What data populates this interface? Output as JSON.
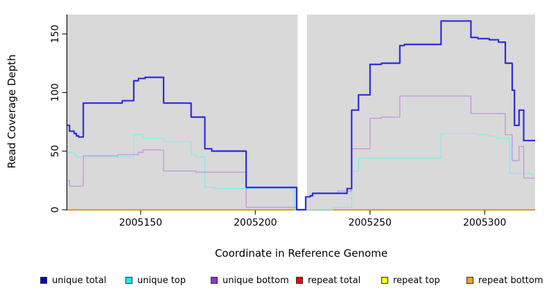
{
  "chart_data": {
    "type": "line",
    "subtype": "step-after",
    "title": "",
    "xlabel": "Coordinate in Reference Genome",
    "ylabel": "Read Coverage Depth",
    "xlim": [
      2005118,
      2005322
    ],
    "ylim": [
      0,
      166
    ],
    "x_ticks": [
      2005150,
      2005200,
      2005250,
      2005300
    ],
    "y_ticks": [
      0,
      50,
      100,
      150
    ],
    "grid": false,
    "plot_bg": "#D9D9D9",
    "page_bg": "#FFFFFF",
    "gap_band": {
      "from": 2005218.5,
      "to": 2005222.5,
      "color": "#FFFFFF"
    },
    "legend_position": "bottom",
    "draw_order": [
      "repeat total",
      "repeat top",
      "repeat bottom",
      "unique top",
      "unique bottom",
      "unique total"
    ],
    "series": [
      {
        "name": "unique total",
        "legend_color": "#0000CD",
        "line_color": "#2020CD",
        "halo_color": "#9C9FEF",
        "points": [
          [
            2005118,
            72
          ],
          [
            2005119,
            67
          ],
          [
            2005121,
            65
          ],
          [
            2005122,
            63
          ],
          [
            2005123,
            62
          ],
          [
            2005125,
            91
          ],
          [
            2005142,
            93
          ],
          [
            2005147,
            110
          ],
          [
            2005149,
            112
          ],
          [
            2005152,
            113
          ],
          [
            2005160,
            91
          ],
          [
            2005172,
            79
          ],
          [
            2005178,
            52
          ],
          [
            2005181,
            50
          ],
          [
            2005196,
            19
          ],
          [
            2005218,
            0
          ],
          [
            2005222,
            11
          ],
          [
            2005224,
            12
          ],
          [
            2005225,
            14
          ],
          [
            2005240,
            18
          ],
          [
            2005242,
            85
          ],
          [
            2005245,
            98
          ],
          [
            2005250,
            124
          ],
          [
            2005255,
            125
          ],
          [
            2005263,
            140
          ],
          [
            2005265,
            141
          ],
          [
            2005281,
            161
          ],
          [
            2005294,
            147
          ],
          [
            2005297,
            146
          ],
          [
            2005302,
            145
          ],
          [
            2005306,
            143
          ],
          [
            2005309,
            125
          ],
          [
            2005312,
            102
          ],
          [
            2005313,
            72
          ],
          [
            2005315,
            85
          ],
          [
            2005317,
            59
          ],
          [
            2005322,
            59
          ]
        ]
      },
      {
        "name": "unique top",
        "legend_color": "#00FFFF",
        "line_color": "#85EAEA",
        "points": [
          [
            2005118,
            49
          ],
          [
            2005121,
            47
          ],
          [
            2005122,
            45
          ],
          [
            2005147,
            64
          ],
          [
            2005151,
            61
          ],
          [
            2005160,
            58
          ],
          [
            2005172,
            47
          ],
          [
            2005174,
            45
          ],
          [
            2005178,
            19
          ],
          [
            2005182,
            18
          ],
          [
            2005217,
            0
          ],
          [
            2005234,
            2
          ],
          [
            2005242,
            33
          ],
          [
            2005245,
            44
          ],
          [
            2005281,
            65
          ],
          [
            2005297,
            64
          ],
          [
            2005302,
            63
          ],
          [
            2005305,
            61
          ],
          [
            2005311,
            31
          ],
          [
            2005320,
            30
          ],
          [
            2005322,
            30
          ]
        ]
      },
      {
        "name": "unique bottom",
        "legend_color": "#9932CC",
        "line_color": "#C298E2",
        "points": [
          [
            2005118,
            25
          ],
          [
            2005119,
            20
          ],
          [
            2005125,
            46
          ],
          [
            2005140,
            47
          ],
          [
            2005149,
            49
          ],
          [
            2005151,
            51
          ],
          [
            2005160,
            33
          ],
          [
            2005174,
            32
          ],
          [
            2005196,
            2
          ],
          [
            2005218,
            0
          ],
          [
            2005222,
            11
          ],
          [
            2005224,
            12
          ],
          [
            2005225,
            14
          ],
          [
            2005236,
            16
          ],
          [
            2005242,
            52
          ],
          [
            2005250,
            78
          ],
          [
            2005255,
            79
          ],
          [
            2005263,
            97
          ],
          [
            2005294,
            82
          ],
          [
            2005309,
            64
          ],
          [
            2005312,
            42
          ],
          [
            2005315,
            54
          ],
          [
            2005317,
            27
          ],
          [
            2005322,
            27
          ]
        ]
      },
      {
        "name": "repeat total",
        "legend_color": "#FF0000",
        "line_color": "#DD0000",
        "points": [
          [
            2005118,
            0
          ],
          [
            2005322,
            0
          ]
        ]
      },
      {
        "name": "repeat top",
        "legend_color": "#FFFF00",
        "line_color": "#F2F200",
        "points": [
          [
            2005118,
            0
          ],
          [
            2005322,
            0
          ]
        ]
      },
      {
        "name": "repeat bottom",
        "legend_color": "#FFA500",
        "line_color": "#FF9D00",
        "points": [
          [
            2005118,
            0
          ],
          [
            2005322,
            0
          ]
        ]
      }
    ]
  }
}
